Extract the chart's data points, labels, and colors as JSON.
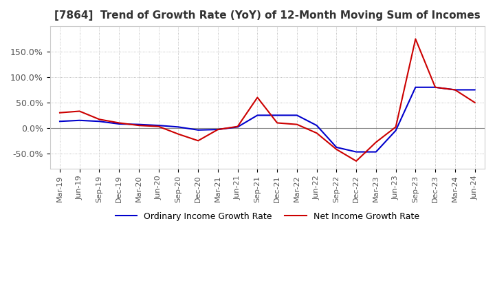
{
  "title": "[7864]  Trend of Growth Rate (YoY) of 12-Month Moving Sum of Incomes",
  "title_fontsize": 11,
  "x_labels": [
    "Mar-19",
    "Jun-19",
    "Sep-19",
    "Dec-19",
    "Mar-20",
    "Jun-20",
    "Sep-20",
    "Dec-20",
    "Mar-21",
    "Jun-21",
    "Sep-21",
    "Dec-21",
    "Mar-22",
    "Jun-22",
    "Sep-22",
    "Dec-22",
    "Mar-23",
    "Jun-23",
    "Sep-23",
    "Dec-23",
    "Mar-24",
    "Jun-24"
  ],
  "ordinary_income": [
    0.13,
    0.15,
    0.13,
    0.08,
    0.07,
    0.05,
    0.02,
    -0.04,
    -0.03,
    0.02,
    0.25,
    0.25,
    0.25,
    0.05,
    -0.38,
    -0.47,
    -0.47,
    -0.05,
    0.8,
    0.8,
    0.75,
    0.75
  ],
  "net_income": [
    0.3,
    0.33,
    0.17,
    0.1,
    0.05,
    0.03,
    -0.12,
    -0.25,
    -0.03,
    0.03,
    0.6,
    0.1,
    0.07,
    -0.1,
    -0.42,
    -0.65,
    -0.28,
    0.02,
    1.75,
    0.8,
    0.75,
    0.5
  ],
  "ylim": [
    -0.8,
    2.0
  ],
  "yticks": [
    -0.5,
    0.0,
    0.5,
    1.0,
    1.5
  ],
  "ytick_labels": [
    "-50.0%",
    "0.0%",
    "50.0%",
    "100.0%",
    "150.0%"
  ],
  "ordinary_color": "#0000cc",
  "net_color": "#cc0000",
  "line_width": 1.5,
  "background_color": "#ffffff",
  "grid_color": "#aaaaaa",
  "legend_ordinary": "Ordinary Income Growth Rate",
  "legend_net": "Net Income Growth Rate"
}
